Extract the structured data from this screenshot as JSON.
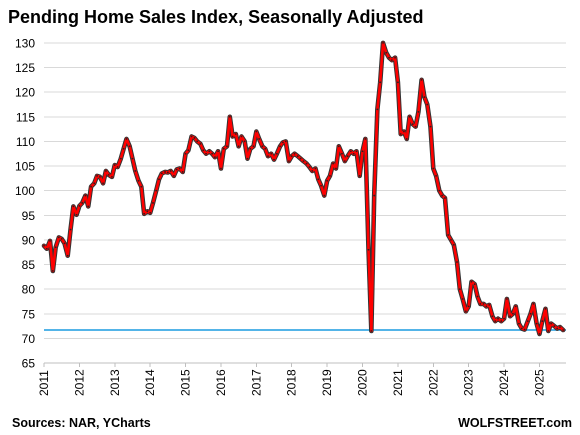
{
  "chart_data": {
    "type": "line",
    "title": "Pending Home Sales Index, Seasonally Adjusted",
    "source": "Sources: NAR, YCharts",
    "brand": "WOLFSTREET.com",
    "xlabel": "",
    "ylabel": "",
    "xlim": [
      2011.0,
      2025.75
    ],
    "ylim": [
      65,
      131
    ],
    "yticks": [
      65,
      70,
      75,
      80,
      85,
      90,
      95,
      100,
      105,
      110,
      115,
      120,
      125,
      130
    ],
    "xticks": [
      2011,
      2012,
      2013,
      2014,
      2015,
      2016,
      2017,
      2018,
      2019,
      2020,
      2021,
      2022,
      2023,
      2024,
      2025
    ],
    "grid": "horizontal",
    "legend": "none",
    "colors": {
      "line": "#ff0000",
      "line_outline": "#333333",
      "reference_line": "#1a9be0",
      "grid": "#d9d9d9"
    },
    "reference_line_value": 71.7,
    "series": [
      {
        "x": [
          2011.0,
          2011.08,
          2011.17,
          2011.25,
          2011.33,
          2011.42,
          2011.5,
          2011.58,
          2011.67,
          2011.75,
          2011.83,
          2011.92,
          2012.0,
          2012.08,
          2012.17,
          2012.25,
          2012.33,
          2012.42,
          2012.5,
          2012.58,
          2012.67,
          2012.75,
          2012.83,
          2012.92,
          2013.0,
          2013.08,
          2013.17,
          2013.25,
          2013.33,
          2013.42,
          2013.5,
          2013.58,
          2013.67,
          2013.75,
          2013.83,
          2013.92,
          2014.0,
          2014.08,
          2014.17,
          2014.25,
          2014.33,
          2014.42,
          2014.5,
          2014.58,
          2014.67,
          2014.75,
          2014.83,
          2014.92,
          2015.0,
          2015.08,
          2015.17,
          2015.25,
          2015.33,
          2015.42,
          2015.5,
          2015.58,
          2015.67,
          2015.75,
          2015.83,
          2015.92,
          2016.0,
          2016.08,
          2016.17,
          2016.25,
          2016.33,
          2016.42,
          2016.5,
          2016.58,
          2016.67,
          2016.75,
          2016.83,
          2016.92,
          2017.0,
          2017.08,
          2017.17,
          2017.25,
          2017.33,
          2017.42,
          2017.5,
          2017.58,
          2017.67,
          2017.75,
          2017.83,
          2017.92,
          2018.0,
          2018.08,
          2018.17,
          2018.25,
          2018.33,
          2018.42,
          2018.5,
          2018.58,
          2018.67,
          2018.75,
          2018.83,
          2018.92,
          2019.0,
          2019.08,
          2019.17,
          2019.25,
          2019.33,
          2019.42,
          2019.5,
          2019.58,
          2019.67,
          2019.75,
          2019.83,
          2019.92,
          2020.0,
          2020.08,
          2020.17,
          2020.25,
          2020.33,
          2020.42,
          2020.5,
          2020.58,
          2020.67,
          2020.75,
          2020.83,
          2020.92,
          2021.0,
          2021.08,
          2021.17,
          2021.25,
          2021.33,
          2021.42,
          2021.5,
          2021.58,
          2021.67,
          2021.75,
          2021.83,
          2021.92,
          2022.0,
          2022.08,
          2022.17,
          2022.25,
          2022.33,
          2022.42,
          2022.5,
          2022.58,
          2022.67,
          2022.75,
          2022.83,
          2022.92,
          2023.0,
          2023.08,
          2023.17,
          2023.25,
          2023.33,
          2023.42,
          2023.5,
          2023.58,
          2023.67,
          2023.75,
          2023.83,
          2023.92,
          2024.0,
          2024.08,
          2024.17,
          2024.25,
          2024.33,
          2024.42,
          2024.5,
          2024.58,
          2024.67,
          2024.75,
          2024.83,
          2024.92,
          2025.0,
          2025.08,
          2025.17,
          2025.25,
          2025.33,
          2025.42,
          2025.5,
          2025.58,
          2025.67
        ],
        "values": [
          88.8,
          88.2,
          89.8,
          83.7,
          88.5,
          90.5,
          90.2,
          89.3,
          86.8,
          92.1,
          96.8,
          95.1,
          96.9,
          97.5,
          99.0,
          96.8,
          100.8,
          101.5,
          103.0,
          102.8,
          101.5,
          104.0,
          103.2,
          102.8,
          105.2,
          104.8,
          106.5,
          108.5,
          110.5,
          109.0,
          106.5,
          104.0,
          102.0,
          100.8,
          95.3,
          95.8,
          95.5,
          97.5,
          100.0,
          102.3,
          103.5,
          103.8,
          103.7,
          104.0,
          103.0,
          104.3,
          104.5,
          103.8,
          107.5,
          108.2,
          111.0,
          110.7,
          110.0,
          109.5,
          108.2,
          107.5,
          108.0,
          107.5,
          106.8,
          108.0,
          104.5,
          108.5,
          109.0,
          115.0,
          111.0,
          111.5,
          109.0,
          111.0,
          110.0,
          106.5,
          108.5,
          109.0,
          112.0,
          110.5,
          109.0,
          108.5,
          107.0,
          107.5,
          106.3,
          107.5,
          109.0,
          109.8,
          110.0,
          106.0,
          107.0,
          107.5,
          107.0,
          106.5,
          106.0,
          105.5,
          104.8,
          104.0,
          104.5,
          102.3,
          101.0,
          99.0,
          102.0,
          103.0,
          105.5,
          104.5,
          109.0,
          107.5,
          106.0,
          107.0,
          108.0,
          107.5,
          108.0,
          103.0,
          108.0,
          110.5,
          88.0,
          71.5,
          99.0,
          116.5,
          122.0,
          130.0,
          128.0,
          127.0,
          126.5,
          127.0,
          122.0,
          111.5,
          112.0,
          110.5,
          115.0,
          113.5,
          113.0,
          116.0,
          122.5,
          119.0,
          117.5,
          113.0,
          104.5,
          103.0,
          100.0,
          99.0,
          98.5,
          91.0,
          90.0,
          89.0,
          85.5,
          80.0,
          78.0,
          75.5,
          76.5,
          81.5,
          81.0,
          78.5,
          77.0,
          77.0,
          76.5,
          76.8,
          74.5,
          73.5,
          74.0,
          73.5,
          74.0,
          78.0,
          74.5,
          75.0,
          76.5,
          73.0,
          72.0,
          71.8,
          73.5,
          75.0,
          77.0,
          73.0,
          70.9,
          73.5,
          76.0,
          71.5,
          73.0,
          72.5,
          72.0,
          72.3,
          71.7
        ]
      }
    ]
  }
}
